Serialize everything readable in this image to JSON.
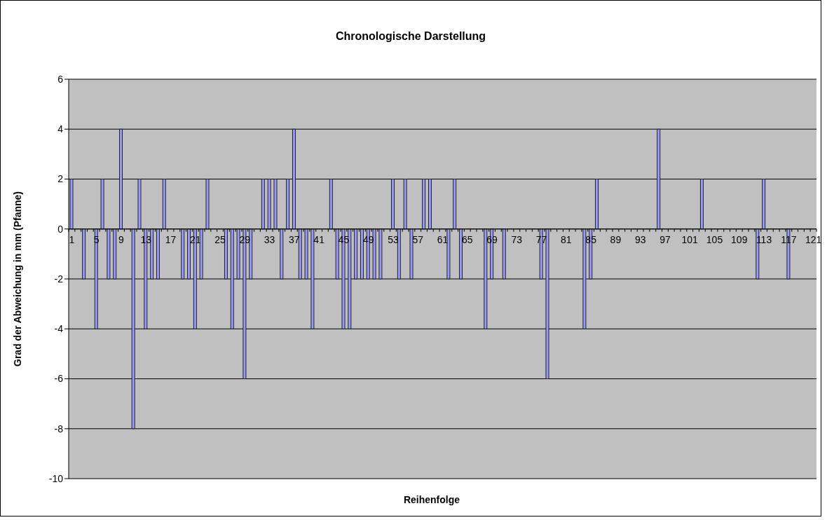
{
  "chart_data": {
    "type": "bar",
    "title": "Chronologische Darstellung",
    "xlabel": "Reihenfolge",
    "ylabel": "Grad der Abweichung in mm (Pfanne)",
    "categories": [
      "1",
      null,
      null,
      null,
      "5",
      null,
      null,
      null,
      "9",
      null,
      null,
      null,
      "13",
      null,
      null,
      null,
      "17",
      null,
      null,
      null,
      "21",
      null,
      null,
      null,
      "25",
      null,
      null,
      null,
      "29",
      null,
      null,
      null,
      "33",
      null,
      null,
      null,
      "37",
      null,
      null,
      null,
      "41",
      null,
      null,
      null,
      "45",
      null,
      null,
      null,
      "49",
      null,
      null,
      null,
      "53",
      null,
      null,
      null,
      "57",
      null,
      null,
      null,
      "61",
      null,
      null,
      null,
      "65",
      null,
      null,
      null,
      "69",
      null,
      null,
      null,
      "73",
      null,
      null,
      null,
      "77",
      null,
      null,
      null,
      "81",
      null,
      null,
      null,
      "85",
      null,
      null,
      null,
      "89",
      null,
      null,
      null,
      "93",
      null,
      null,
      null,
      "97",
      null,
      null,
      null,
      "101",
      null,
      null,
      null,
      "105",
      null,
      null,
      null,
      "109",
      null,
      null,
      null,
      "113",
      null,
      null,
      null,
      "117",
      null,
      null,
      null,
      "121"
    ],
    "values": [
      2,
      0,
      -2,
      0,
      -4,
      2,
      -2,
      -2,
      4,
      0,
      -8,
      2,
      -4,
      -2,
      -2,
      2,
      0,
      0,
      -2,
      -2,
      -4,
      -2,
      2,
      0,
      0,
      -2,
      -4,
      -2,
      -6,
      -2,
      0,
      2,
      2,
      2,
      -2,
      2,
      4,
      -2,
      -2,
      -4,
      0,
      0,
      2,
      -2,
      -4,
      -4,
      -2,
      -2,
      -2,
      -2,
      -2,
      0,
      2,
      -2,
      2,
      -2,
      0,
      2,
      2,
      0,
      0,
      -2,
      2,
      -2,
      0,
      0,
      0,
      -4,
      -2,
      0,
      -2,
      0,
      0,
      0,
      0,
      0,
      -2,
      -6,
      0,
      0,
      0,
      0,
      0,
      -4,
      -2,
      2,
      0,
      0,
      0,
      0,
      0,
      0,
      0,
      0,
      0,
      4,
      0,
      0,
      0,
      0,
      0,
      0,
      2,
      0,
      0,
      0,
      0,
      0,
      0,
      0,
      0,
      -2,
      2,
      0,
      0,
      0,
      -2,
      0,
      0,
      0,
      0
    ],
    "color": "#9999ff",
    "ylim": [
      -10,
      6
    ],
    "yticks": [
      -10,
      -8,
      -6,
      -4,
      -2,
      0,
      2,
      4,
      6
    ],
    "grid": "y"
  }
}
